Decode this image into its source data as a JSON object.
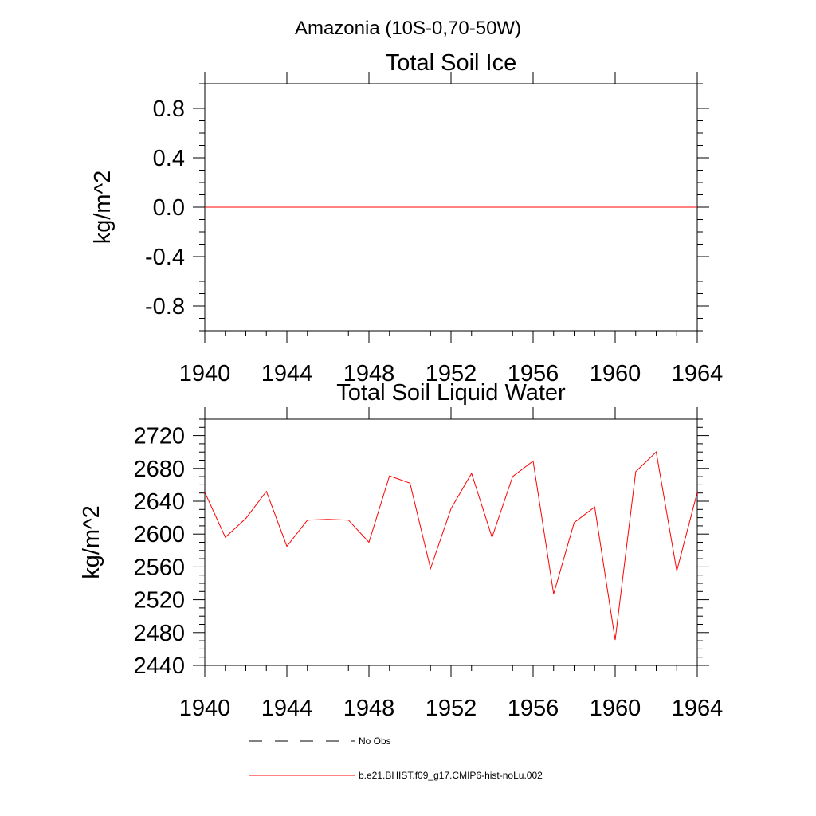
{
  "figure": {
    "suptitle": "Amazonia (10S-0,70-50W)"
  },
  "legend": [
    {
      "label": "No Obs",
      "color": "#000000",
      "style": "dashed"
    },
    {
      "label": "b.e21.BHIST.f09_g17.CMIP6-hist-noLu.002",
      "color": "#ff0000",
      "style": "solid"
    }
  ],
  "chart_data": [
    {
      "type": "line",
      "title": "Total Soil Ice",
      "xlabel": "",
      "ylabel": "kg/m^2",
      "xlim": [
        1940,
        1964
      ],
      "ylim": [
        -1.0,
        1.0
      ],
      "xticks": [
        1940,
        1944,
        1948,
        1952,
        1956,
        1960,
        1964
      ],
      "yticks": [
        -0.8,
        -0.4,
        0.0,
        0.4,
        0.8
      ],
      "ytick_labels": [
        "-0.8",
        "-0.4",
        "0.0",
        "0.4",
        "0.8"
      ],
      "series": [
        {
          "name": "b.e21.BHIST.f09_g17.CMIP6-hist-noLu.002",
          "color": "#ff0000",
          "x": [
            1940,
            1941,
            1942,
            1943,
            1944,
            1945,
            1946,
            1947,
            1948,
            1949,
            1950,
            1951,
            1952,
            1953,
            1954,
            1955,
            1956,
            1957,
            1958,
            1959,
            1960,
            1961,
            1962,
            1963,
            1964
          ],
          "values": [
            0,
            0,
            0,
            0,
            0,
            0,
            0,
            0,
            0,
            0,
            0,
            0,
            0,
            0,
            0,
            0,
            0,
            0,
            0,
            0,
            0,
            0,
            0,
            0,
            0
          ]
        }
      ]
    },
    {
      "type": "line",
      "title": "Total Soil Liquid Water",
      "xlabel": "",
      "ylabel": "kg/m^2",
      "xlim": [
        1940,
        1964
      ],
      "ylim": [
        2440,
        2740
      ],
      "xticks": [
        1940,
        1944,
        1948,
        1952,
        1956,
        1960,
        1964
      ],
      "yticks": [
        2440,
        2480,
        2520,
        2560,
        2600,
        2640,
        2680,
        2720
      ],
      "ytick_labels": [
        "2440",
        "2480",
        "2520",
        "2560",
        "2600",
        "2640",
        "2680",
        "2720"
      ],
      "series": [
        {
          "name": "b.e21.BHIST.f09_g17.CMIP6-hist-noLu.002",
          "color": "#ff0000",
          "x": [
            1940,
            1941,
            1942,
            1943,
            1944,
            1945,
            1946,
            1947,
            1948,
            1949,
            1950,
            1951,
            1952,
            1953,
            1954,
            1955,
            1956,
            1957,
            1958,
            1959,
            1960,
            1961,
            1962,
            1963,
            1964
          ],
          "values": [
            2651,
            2596,
            2619,
            2652,
            2585,
            2617,
            2618,
            2617,
            2590,
            2671,
            2662,
            2558,
            2631,
            2674,
            2596,
            2670,
            2689,
            2527,
            2614,
            2633,
            2471,
            2676,
            2700,
            2555,
            2651
          ]
        }
      ]
    }
  ]
}
